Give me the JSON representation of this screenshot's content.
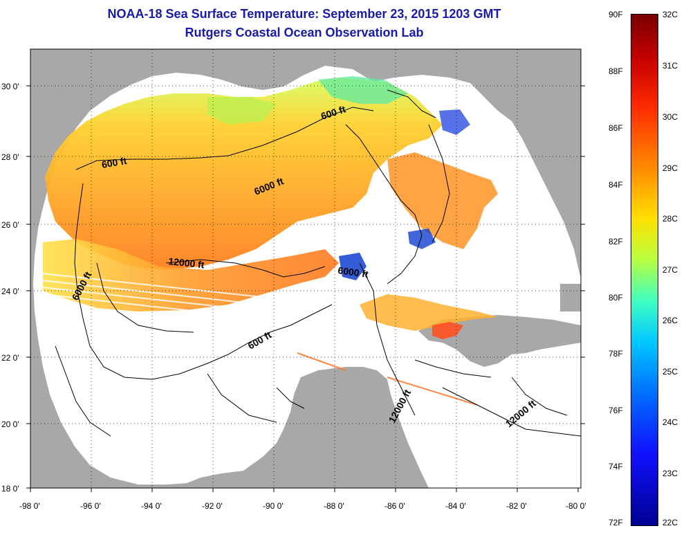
{
  "title": "NOAA-18 Sea Surface Temperature:  September 23, 2015 1203 GMT",
  "subtitle": "Rutgers Coastal Ocean Observation Lab",
  "map": {
    "x_ticks": [
      "-98 0'",
      "-96 0'",
      "-94 0'",
      "-92 0'",
      "-90 0'",
      "-88 0'",
      "-86 0'",
      "-84 0'",
      "-82 0'",
      "-80 0'"
    ],
    "y_ticks": [
      "30 0'",
      "28 0'",
      "26 0'",
      "24 0'",
      "22 0'",
      "20 0'",
      "18 0'"
    ],
    "contour_labels": [
      "600 ft",
      "600 ft",
      "6000 ft",
      "12000 ft",
      "6000 ft",
      "6000 ft",
      "600 ft",
      "12000 ft",
      "12000 ft"
    ],
    "colors": {
      "land": "#a8a8a8",
      "ocean": "#ffffff",
      "contour": "#000000"
    }
  },
  "colorbar": {
    "f_labels": [
      "90F",
      "88F",
      "86F",
      "84F",
      "82F",
      "80F",
      "78F",
      "76F",
      "74F",
      "72F"
    ],
    "c_labels": [
      "32C",
      "31C",
      "30C",
      "29C",
      "28C",
      "27C",
      "26C",
      "25C",
      "24C",
      "23C",
      "22C"
    ],
    "gradient": [
      "#7a0000",
      "#c80000",
      "#ff2a00",
      "#ff8a00",
      "#ffe000",
      "#b8ff40",
      "#40ffc0",
      "#00c8ff",
      "#0070ff",
      "#1010ff",
      "#000090"
    ]
  }
}
